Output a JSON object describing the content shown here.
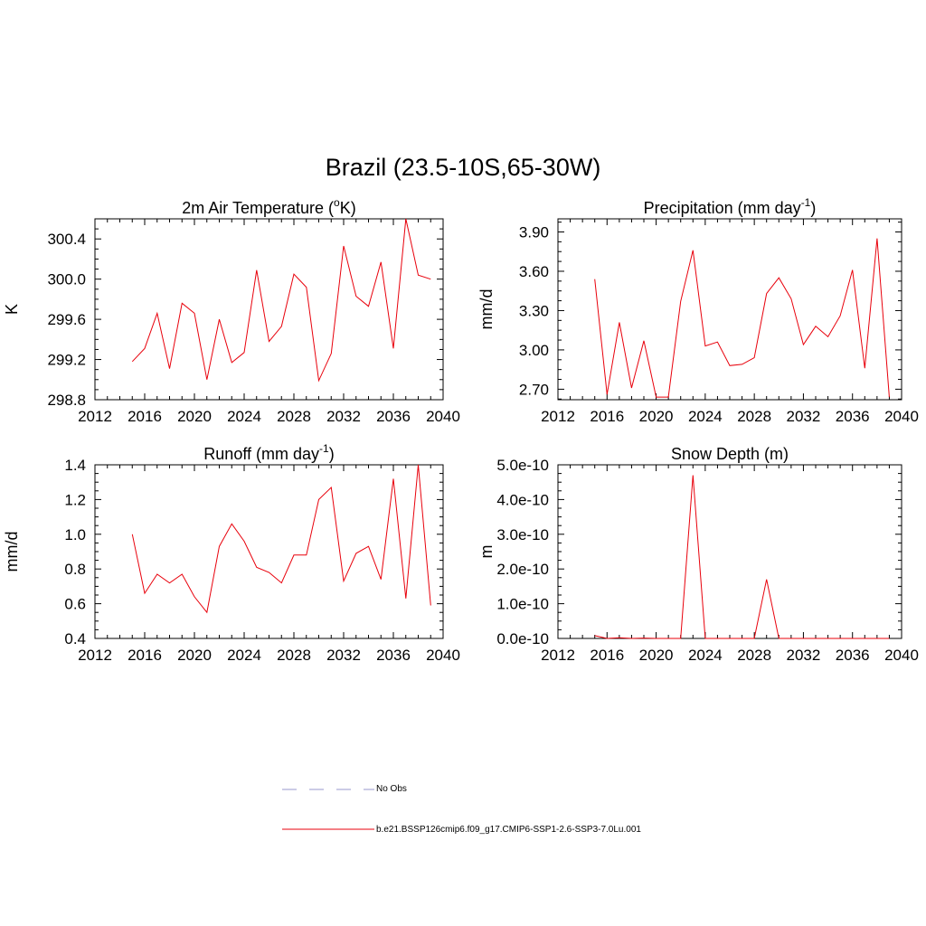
{
  "title": "Brazil (23.5-10S,65-30W)",
  "colors": {
    "model_line": "#e8000b",
    "obs_line": "#9999cc",
    "axis": "#000000"
  },
  "legend": [
    {
      "label": "No Obs",
      "style": "dashed",
      "color": "#9999cc"
    },
    {
      "label": "b.e21.BSSP126cmip6.f09_g17.CMIP6-SSP1-2.6-SSP3-7.0Lu.001",
      "style": "solid",
      "color": "#e8000b"
    }
  ],
  "chart_data": [
    {
      "type": "line",
      "title": "2m Air Temperature (°K)",
      "title_parts": {
        "pre": "2m Air Temperature (",
        "sup": "o",
        "post": "K)"
      },
      "ylabel": "K",
      "xlim": [
        2012,
        2040
      ],
      "ylim": [
        298.8,
        300.6
      ],
      "xticks": [
        2012,
        2016,
        2020,
        2024,
        2028,
        2032,
        2036,
        2040
      ],
      "yticks": [
        "298.8",
        "299.2",
        "299.6",
        "300.0",
        "300.4"
      ],
      "series": [
        {
          "x": [
            2015,
            2016,
            2017,
            2018,
            2019,
            2020,
            2021,
            2022,
            2023,
            2024,
            2025,
            2026,
            2027,
            2028,
            2029,
            2030,
            2031,
            2032,
            2033,
            2034,
            2035,
            2036,
            2037,
            2038,
            2039
          ],
          "values": [
            299.18,
            299.31,
            299.66,
            299.11,
            299.76,
            299.66,
            299.0,
            299.6,
            299.17,
            299.27,
            300.09,
            299.38,
            299.53,
            300.05,
            299.92,
            298.99,
            299.26,
            300.33,
            299.83,
            299.73,
            300.17,
            299.31,
            300.6,
            300.04,
            300.0
          ]
        }
      ]
    },
    {
      "type": "line",
      "title": "Precipitation (mm day-1)",
      "title_parts": {
        "pre": "Precipitation (mm day",
        "sup": "-1",
        "post": ")"
      },
      "ylabel": "mm/d",
      "xlim": [
        2012,
        2040
      ],
      "ylim": [
        2.62,
        4.0
      ],
      "xticks": [
        2012,
        2016,
        2020,
        2024,
        2028,
        2032,
        2036,
        2040
      ],
      "yticks": [
        "2.70",
        "3.00",
        "3.30",
        "3.60",
        "3.90"
      ],
      "series": [
        {
          "x": [
            2015,
            2016,
            2017,
            2018,
            2019,
            2020,
            2021,
            2022,
            2023,
            2024,
            2025,
            2026,
            2027,
            2028,
            2029,
            2030,
            2031,
            2032,
            2033,
            2034,
            2035,
            2036,
            2037,
            2038,
            2039
          ],
          "values": [
            3.54,
            2.66,
            3.21,
            2.71,
            3.07,
            2.64,
            2.64,
            3.37,
            3.76,
            3.03,
            3.06,
            2.88,
            2.89,
            2.94,
            3.43,
            3.55,
            3.39,
            3.04,
            3.18,
            3.1,
            3.26,
            3.61,
            2.86,
            3.85,
            2.64
          ]
        }
      ]
    },
    {
      "type": "line",
      "title": "Runoff (mm day-1)",
      "title_parts": {
        "pre": "Runoff (mm day",
        "sup": "-1",
        "post": ")"
      },
      "ylabel": "mm/d",
      "xlim": [
        2012,
        2040
      ],
      "ylim": [
        0.4,
        1.4
      ],
      "xticks": [
        2012,
        2016,
        2020,
        2024,
        2028,
        2032,
        2036,
        2040
      ],
      "yticks": [
        "0.4",
        "0.6",
        "0.8",
        "1.0",
        "1.2",
        "1.4"
      ],
      "series": [
        {
          "x": [
            2015,
            2016,
            2017,
            2018,
            2019,
            2020,
            2021,
            2022,
            2023,
            2024,
            2025,
            2026,
            2027,
            2028,
            2029,
            2030,
            2031,
            2032,
            2033,
            2034,
            2035,
            2036,
            2037,
            2038,
            2039
          ],
          "values": [
            1.0,
            0.66,
            0.77,
            0.72,
            0.77,
            0.64,
            0.55,
            0.93,
            1.06,
            0.96,
            0.81,
            0.78,
            0.72,
            0.88,
            0.88,
            1.2,
            1.27,
            0.73,
            0.89,
            0.93,
            0.74,
            1.32,
            0.63,
            1.4,
            0.59
          ]
        }
      ]
    },
    {
      "type": "line",
      "title": "Snow Depth (m)",
      "title_parts": {
        "pre": "Snow Depth (m)",
        "sup": "",
        "post": ""
      },
      "ylabel": "m",
      "xlim": [
        2012,
        2040
      ],
      "ylim": [
        0,
        5e-10
      ],
      "xticks": [
        2012,
        2016,
        2020,
        2024,
        2028,
        2032,
        2036,
        2040
      ],
      "yticks": [
        "0.0e-10",
        "1.0e-10",
        "2.0e-10",
        "3.0e-10",
        "4.0e-10",
        "5.0e-10"
      ],
      "series": [
        {
          "x": [
            2015,
            2016,
            2017,
            2018,
            2019,
            2020,
            2021,
            2022,
            2023,
            2024,
            2025,
            2026,
            2027,
            2028,
            2029,
            2030,
            2031,
            2032,
            2033,
            2034,
            2035,
            2036,
            2037,
            2038,
            2039
          ],
          "values": [
            8e-12,
            0,
            2e-12,
            0,
            1e-12,
            0,
            0,
            0,
            4.7e-10,
            0,
            0,
            0,
            0,
            0,
            1.7e-10,
            0,
            0,
            0,
            0,
            0,
            0,
            0,
            0,
            0,
            0
          ]
        }
      ]
    }
  ]
}
